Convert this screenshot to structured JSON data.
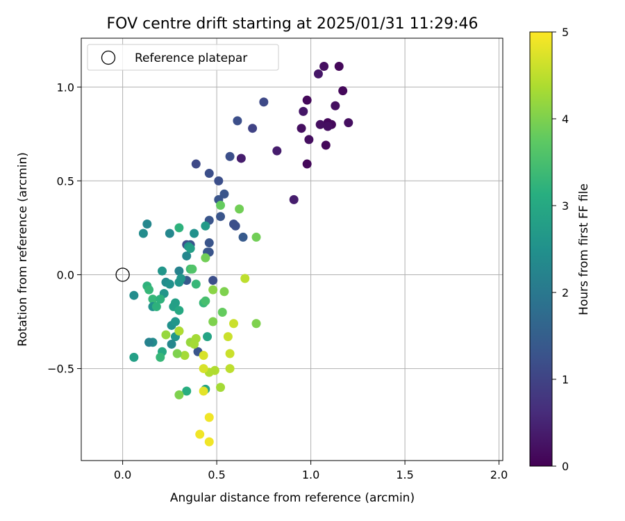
{
  "chart_data": {
    "type": "scatter",
    "title": "FOV centre drift starting at 2025/01/31 11:29:46",
    "xlabel": "Angular distance from reference (arcmin)",
    "ylabel": "Rotation from reference (arcmin)",
    "xlim": [
      -0.22,
      2.02
    ],
    "ylim": [
      -0.99,
      1.26
    ],
    "xticks": [
      0.0,
      0.5,
      1.0,
      1.5,
      2.0
    ],
    "xtick_labels": [
      "0.0",
      "0.5",
      "1.0",
      "1.5",
      "2.0"
    ],
    "yticks": [
      -0.5,
      0.0,
      0.5,
      1.0
    ],
    "ytick_labels": [
      "−0.5",
      "0.0",
      "0.5",
      "1.0"
    ],
    "grid": true,
    "legend": {
      "placement": "top-left",
      "entries": [
        "Reference platepar"
      ]
    },
    "reference_point": {
      "x": 0.0,
      "y": 0.0
    },
    "colorbar": {
      "label": "Hours from first FF file",
      "range": [
        0,
        5
      ],
      "ticks": [
        0,
        1,
        2,
        3,
        4,
        5
      ],
      "tick_labels": [
        "0",
        "1",
        "2",
        "3",
        "4",
        "5"
      ],
      "colormap": "viridis"
    },
    "points": [
      {
        "x": 1.07,
        "y": 1.11,
        "c": 0.2
      },
      {
        "x": 1.15,
        "y": 1.11,
        "c": 0.1
      },
      {
        "x": 1.04,
        "y": 1.07,
        "c": 0.3
      },
      {
        "x": 1.17,
        "y": 0.98,
        "c": 0.1
      },
      {
        "x": 0.98,
        "y": 0.93,
        "c": 0.1
      },
      {
        "x": 1.13,
        "y": 0.9,
        "c": 0.2
      },
      {
        "x": 0.96,
        "y": 0.87,
        "c": 0.3
      },
      {
        "x": 1.09,
        "y": 0.81,
        "c": 0.1
      },
      {
        "x": 1.05,
        "y": 0.8,
        "c": 0.2
      },
      {
        "x": 1.11,
        "y": 0.8,
        "c": 0.1
      },
      {
        "x": 1.2,
        "y": 0.81,
        "c": 0.2
      },
      {
        "x": 1.09,
        "y": 0.79,
        "c": 0.2
      },
      {
        "x": 0.95,
        "y": 0.78,
        "c": 0.2
      },
      {
        "x": 0.99,
        "y": 0.72,
        "c": 0.2
      },
      {
        "x": 1.08,
        "y": 0.69,
        "c": 0.1
      },
      {
        "x": 0.98,
        "y": 0.59,
        "c": 0.1
      },
      {
        "x": 0.91,
        "y": 0.4,
        "c": 0.4
      },
      {
        "x": 0.82,
        "y": 0.66,
        "c": 0.4
      },
      {
        "x": 0.63,
        "y": 0.62,
        "c": 0.4
      },
      {
        "x": 0.75,
        "y": 0.92,
        "c": 1.1
      },
      {
        "x": 0.69,
        "y": 0.78,
        "c": 1.0
      },
      {
        "x": 0.61,
        "y": 0.82,
        "c": 1.2
      },
      {
        "x": 0.57,
        "y": 0.63,
        "c": 1.2
      },
      {
        "x": 0.39,
        "y": 0.59,
        "c": 1.1
      },
      {
        "x": 0.46,
        "y": 0.54,
        "c": 1.2
      },
      {
        "x": 0.51,
        "y": 0.5,
        "c": 1.2
      },
      {
        "x": 0.54,
        "y": 0.43,
        "c": 1.3
      },
      {
        "x": 0.51,
        "y": 0.4,
        "c": 1.3
      },
      {
        "x": 0.52,
        "y": 0.31,
        "c": 1.3
      },
      {
        "x": 0.46,
        "y": 0.29,
        "c": 1.3
      },
      {
        "x": 0.59,
        "y": 0.27,
        "c": 1.2
      },
      {
        "x": 0.6,
        "y": 0.26,
        "c": 1.2
      },
      {
        "x": 0.64,
        "y": 0.2,
        "c": 1.4
      },
      {
        "x": 0.46,
        "y": 0.17,
        "c": 1.3
      },
      {
        "x": 0.34,
        "y": 0.16,
        "c": 1.2
      },
      {
        "x": 0.36,
        "y": 0.16,
        "c": 1.3
      },
      {
        "x": 0.45,
        "y": 0.12,
        "c": 1.4
      },
      {
        "x": 0.46,
        "y": 0.12,
        "c": 1.3
      },
      {
        "x": 0.48,
        "y": -0.03,
        "c": 1.2
      },
      {
        "x": 0.34,
        "y": -0.03,
        "c": 1.4
      },
      {
        "x": 0.4,
        "y": -0.41,
        "c": 1.3
      },
      {
        "x": 0.13,
        "y": 0.27,
        "c": 2.3
      },
      {
        "x": 0.11,
        "y": 0.22,
        "c": 2.4
      },
      {
        "x": 0.25,
        "y": 0.22,
        "c": 2.3
      },
      {
        "x": 0.38,
        "y": 0.22,
        "c": 2.5
      },
      {
        "x": 0.35,
        "y": 0.15,
        "c": 2.6
      },
      {
        "x": 0.34,
        "y": 0.1,
        "c": 2.3
      },
      {
        "x": 0.44,
        "y": 0.26,
        "c": 2.7
      },
      {
        "x": 0.3,
        "y": 0.25,
        "c": 3.2
      },
      {
        "x": 0.36,
        "y": 0.14,
        "c": 2.8
      },
      {
        "x": 0.36,
        "y": 0.03,
        "c": 3.4
      },
      {
        "x": 0.3,
        "y": 0.02,
        "c": 2.2
      },
      {
        "x": 0.21,
        "y": 0.02,
        "c": 2.6
      },
      {
        "x": 0.23,
        "y": -0.04,
        "c": 2.4
      },
      {
        "x": 0.25,
        "y": -0.05,
        "c": 2.5
      },
      {
        "x": 0.31,
        "y": -0.02,
        "c": 2.6
      },
      {
        "x": 0.3,
        "y": -0.04,
        "c": 2.6
      },
      {
        "x": 0.13,
        "y": -0.06,
        "c": 3.2
      },
      {
        "x": 0.14,
        "y": -0.08,
        "c": 3.3
      },
      {
        "x": 0.22,
        "y": -0.1,
        "c": 2.6
      },
      {
        "x": 0.06,
        "y": -0.11,
        "c": 2.4
      },
      {
        "x": 0.16,
        "y": -0.13,
        "c": 3.3
      },
      {
        "x": 0.2,
        "y": -0.13,
        "c": 3.2
      },
      {
        "x": 0.16,
        "y": -0.17,
        "c": 2.5
      },
      {
        "x": 0.18,
        "y": -0.17,
        "c": 3.2
      },
      {
        "x": 0.28,
        "y": -0.15,
        "c": 2.8
      },
      {
        "x": 0.27,
        "y": -0.17,
        "c": 2.8
      },
      {
        "x": 0.3,
        "y": -0.19,
        "c": 3.0
      },
      {
        "x": 0.26,
        "y": -0.27,
        "c": 2.5
      },
      {
        "x": 0.28,
        "y": -0.25,
        "c": 2.6
      },
      {
        "x": 0.3,
        "y": -0.3,
        "c": 2.4
      },
      {
        "x": 0.28,
        "y": -0.33,
        "c": 2.6
      },
      {
        "x": 0.26,
        "y": -0.37,
        "c": 2.3
      },
      {
        "x": 0.16,
        "y": -0.36,
        "c": 2.4
      },
      {
        "x": 0.14,
        "y": -0.36,
        "c": 2.2
      },
      {
        "x": 0.21,
        "y": -0.41,
        "c": 3.0
      },
      {
        "x": 0.06,
        "y": -0.44,
        "c": 2.8
      },
      {
        "x": 0.2,
        "y": -0.44,
        "c": 3.3
      },
      {
        "x": 0.34,
        "y": -0.62,
        "c": 3.1
      },
      {
        "x": 0.44,
        "y": -0.61,
        "c": 2.9
      },
      {
        "x": 0.45,
        "y": -0.33,
        "c": 2.9
      },
      {
        "x": 0.43,
        "y": -0.15,
        "c": 3.3
      },
      {
        "x": 0.44,
        "y": -0.14,
        "c": 3.5
      },
      {
        "x": 0.39,
        "y": -0.05,
        "c": 3.3
      },
      {
        "x": 0.37,
        "y": 0.03,
        "c": 3.6
      },
      {
        "x": 0.44,
        "y": 0.09,
        "c": 3.9
      },
      {
        "x": 0.52,
        "y": 0.37,
        "c": 3.8
      },
      {
        "x": 0.62,
        "y": 0.35,
        "c": 3.9
      },
      {
        "x": 0.71,
        "y": 0.2,
        "c": 3.9
      },
      {
        "x": 0.53,
        "y": -0.2,
        "c": 3.8
      },
      {
        "x": 0.54,
        "y": -0.09,
        "c": 4.0
      },
      {
        "x": 0.48,
        "y": -0.08,
        "c": 4.1
      },
      {
        "x": 0.48,
        "y": -0.25,
        "c": 4.0
      },
      {
        "x": 0.71,
        "y": -0.26,
        "c": 4.0
      },
      {
        "x": 0.65,
        "y": -0.02,
        "c": 4.5
      },
      {
        "x": 0.59,
        "y": -0.26,
        "c": 4.6
      },
      {
        "x": 0.56,
        "y": -0.33,
        "c": 4.6
      },
      {
        "x": 0.57,
        "y": -0.42,
        "c": 4.6
      },
      {
        "x": 0.57,
        "y": -0.5,
        "c": 4.5
      },
      {
        "x": 0.52,
        "y": -0.6,
        "c": 4.3
      },
      {
        "x": 0.49,
        "y": -0.51,
        "c": 4.4
      },
      {
        "x": 0.46,
        "y": -0.52,
        "c": 4.4
      },
      {
        "x": 0.43,
        "y": -0.5,
        "c": 4.7
      },
      {
        "x": 0.43,
        "y": -0.43,
        "c": 4.7
      },
      {
        "x": 0.43,
        "y": -0.62,
        "c": 4.8
      },
      {
        "x": 0.3,
        "y": -0.3,
        "c": 4.4
      },
      {
        "x": 0.36,
        "y": -0.36,
        "c": 4.2
      },
      {
        "x": 0.38,
        "y": -0.37,
        "c": 4.3
      },
      {
        "x": 0.39,
        "y": -0.34,
        "c": 4.3
      },
      {
        "x": 0.33,
        "y": -0.43,
        "c": 4.3
      },
      {
        "x": 0.29,
        "y": -0.42,
        "c": 4.0
      },
      {
        "x": 0.23,
        "y": -0.32,
        "c": 4.2
      },
      {
        "x": 0.3,
        "y": -0.64,
        "c": 4.0
      },
      {
        "x": 0.46,
        "y": -0.76,
        "c": 4.9
      },
      {
        "x": 0.41,
        "y": -0.85,
        "c": 4.9
      },
      {
        "x": 0.46,
        "y": -0.89,
        "c": 4.9
      }
    ]
  }
}
